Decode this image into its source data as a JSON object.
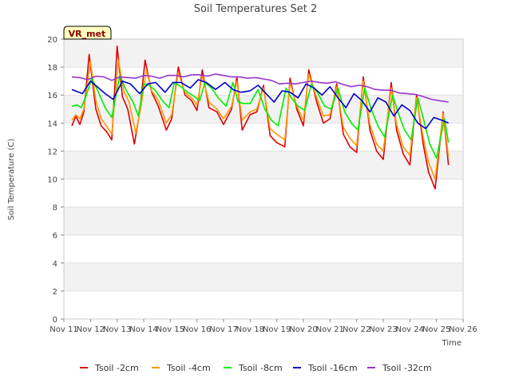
{
  "chart_data": {
    "type": "line",
    "title": "Soil Temperatures Set 2",
    "xlabel": "Time",
    "ylabel": "Soil Temperature (C)",
    "badge": "VR_met",
    "xlim": [
      0,
      15
    ],
    "ylim": [
      0,
      20
    ],
    "x_ticks": [
      "Nov 11",
      "Nov 12",
      "Nov 13",
      "Nov 14",
      "Nov 15",
      "Nov 16",
      "Nov 17",
      "Nov 18",
      "Nov 19",
      "Nov 20",
      "Nov 21",
      "Nov 22",
      "Nov 23",
      "Nov 24",
      "Nov 25",
      "Nov 26"
    ],
    "y_ticks": [
      0,
      2,
      4,
      6,
      8,
      10,
      12,
      14,
      16,
      18,
      20
    ],
    "grid": true,
    "legend_position": "bottom",
    "x_units": "days since Nov 11",
    "series": [
      {
        "name": "Tsoil -2cm",
        "color": "#dd0000",
        "x": [
          0.3,
          0.45,
          0.6,
          0.75,
          0.95,
          1.2,
          1.4,
          1.6,
          1.8,
          2.0,
          2.2,
          2.4,
          2.65,
          2.85,
          3.05,
          3.3,
          3.55,
          3.85,
          4.05,
          4.3,
          4.55,
          4.8,
          5.0,
          5.2,
          5.45,
          5.75,
          6.0,
          6.3,
          6.5,
          6.7,
          7.0,
          7.25,
          7.5,
          7.75,
          8.0,
          8.3,
          8.5,
          8.75,
          9.0,
          9.2,
          9.5,
          9.75,
          10.0,
          10.25,
          10.5,
          10.75,
          11.0,
          11.25,
          11.5,
          11.75,
          12.0,
          12.3,
          12.5,
          12.75,
          13.0,
          13.25,
          13.5,
          13.7,
          13.95,
          14.25,
          14.45
        ],
        "y": [
          13.8,
          14.5,
          13.9,
          14.8,
          18.9,
          15.0,
          13.8,
          13.4,
          12.8,
          19.5,
          15.9,
          15.0,
          12.5,
          14.8,
          18.5,
          16.2,
          15.2,
          13.5,
          14.3,
          18.0,
          16.0,
          15.6,
          14.9,
          17.8,
          15.1,
          14.8,
          13.9,
          15.0,
          17.3,
          13.5,
          14.6,
          14.8,
          16.7,
          13.1,
          12.6,
          12.3,
          17.2,
          15.0,
          13.8,
          17.8,
          15.5,
          14.0,
          14.3,
          16.8,
          13.2,
          12.3,
          11.9,
          17.3,
          13.5,
          12.0,
          11.4,
          16.9,
          13.5,
          11.8,
          11.0,
          16.0,
          12.5,
          10.5,
          9.3,
          14.8,
          11.0
        ]
      },
      {
        "name": "Tsoil -4cm",
        "color": "#ff9900",
        "x": [
          0.3,
          0.45,
          0.6,
          0.75,
          1.0,
          1.2,
          1.4,
          1.6,
          1.8,
          2.05,
          2.25,
          2.45,
          2.7,
          2.9,
          3.1,
          3.3,
          3.55,
          3.85,
          4.05,
          4.3,
          4.55,
          4.8,
          5.0,
          5.2,
          5.45,
          5.75,
          6.0,
          6.3,
          6.5,
          6.7,
          7.0,
          7.25,
          7.5,
          7.75,
          8.0,
          8.3,
          8.5,
          8.75,
          9.0,
          9.2,
          9.5,
          9.75,
          10.0,
          10.25,
          10.5,
          10.75,
          11.0,
          11.25,
          11.5,
          11.75,
          12.0,
          12.3,
          12.5,
          12.75,
          13.0,
          13.25,
          13.5,
          13.7,
          13.95,
          14.25,
          14.45
        ],
        "y": [
          14.2,
          14.6,
          14.3,
          15.0,
          18.4,
          15.6,
          14.3,
          13.8,
          13.2,
          18.5,
          16.3,
          15.5,
          13.3,
          15.2,
          17.8,
          16.3,
          15.6,
          14.0,
          14.6,
          17.6,
          16.2,
          15.8,
          15.3,
          17.4,
          15.5,
          15.0,
          14.3,
          15.2,
          17.0,
          14.2,
          14.8,
          15.0,
          16.5,
          13.6,
          13.2,
          12.8,
          16.9,
          15.2,
          14.2,
          17.5,
          15.8,
          14.5,
          14.6,
          16.6,
          13.7,
          12.9,
          12.4,
          17.0,
          13.9,
          12.5,
          12.0,
          16.5,
          13.9,
          12.3,
          11.7,
          15.8,
          13.0,
          11.2,
          10.0,
          14.7,
          11.6
        ]
      },
      {
        "name": "Tsoil -8cm",
        "color": "#00ee00",
        "x": [
          0.3,
          0.5,
          0.65,
          0.85,
          1.05,
          1.3,
          1.55,
          1.8,
          2.1,
          2.35,
          2.6,
          2.8,
          3.0,
          3.2,
          3.45,
          3.7,
          3.95,
          4.15,
          4.4,
          4.65,
          4.9,
          5.1,
          5.3,
          5.55,
          5.8,
          6.1,
          6.35,
          6.55,
          6.75,
          7.0,
          7.3,
          7.55,
          7.8,
          8.05,
          8.35,
          8.55,
          8.8,
          9.05,
          9.3,
          9.55,
          9.8,
          10.05,
          10.3,
          10.55,
          10.8,
          11.05,
          11.3,
          11.55,
          11.8,
          12.05,
          12.35,
          12.55,
          12.8,
          13.05,
          13.3,
          13.55,
          13.75,
          14.0,
          14.3,
          14.45
        ],
        "y": [
          15.2,
          15.3,
          15.1,
          16.0,
          17.2,
          16.2,
          15.1,
          14.4,
          17.4,
          16.3,
          15.5,
          14.5,
          16.8,
          16.7,
          16.3,
          15.6,
          15.1,
          16.9,
          16.6,
          16.2,
          15.9,
          15.6,
          16.9,
          16.5,
          15.8,
          15.2,
          16.9,
          15.5,
          15.4,
          15.4,
          16.4,
          15.0,
          14.2,
          13.8,
          16.5,
          15.8,
          15.2,
          14.9,
          16.8,
          16.1,
          15.2,
          15.0,
          16.5,
          14.8,
          14.0,
          13.5,
          16.5,
          15.0,
          13.8,
          13.0,
          16.0,
          14.8,
          13.5,
          12.8,
          15.8,
          14.0,
          12.5,
          11.5,
          14.3,
          12.6
        ]
      },
      {
        "name": "Tsoil -16cm",
        "color": "#0000cc",
        "x": [
          0.3,
          0.7,
          1.0,
          1.25,
          1.55,
          1.85,
          2.2,
          2.5,
          2.85,
          3.15,
          3.45,
          3.8,
          4.1,
          4.4,
          4.75,
          5.05,
          5.35,
          5.7,
          6.05,
          6.35,
          6.65,
          7.0,
          7.3,
          7.6,
          7.9,
          8.2,
          8.5,
          8.8,
          9.1,
          9.4,
          9.7,
          10.0,
          10.3,
          10.6,
          10.9,
          11.2,
          11.5,
          11.8,
          12.1,
          12.4,
          12.7,
          13.0,
          13.3,
          13.6,
          13.9,
          14.2,
          14.45
        ],
        "y": [
          16.4,
          16.1,
          17.0,
          16.6,
          16.1,
          15.7,
          17.0,
          16.8,
          16.1,
          16.8,
          16.9,
          16.2,
          16.9,
          16.9,
          16.5,
          17.1,
          16.9,
          16.4,
          16.9,
          16.4,
          16.2,
          16.3,
          16.7,
          16.1,
          15.5,
          16.3,
          16.2,
          15.8,
          16.8,
          16.5,
          16.0,
          16.6,
          15.8,
          15.1,
          16.1,
          15.6,
          14.8,
          15.8,
          15.5,
          14.5,
          15.3,
          14.9,
          14.0,
          13.6,
          14.4,
          14.2,
          14.0
        ]
      },
      {
        "name": "Tsoil -32cm",
        "color": "#9933cc",
        "x": [
          0.3,
          0.6,
          0.9,
          1.2,
          1.5,
          1.8,
          2.1,
          2.4,
          2.7,
          3.0,
          3.3,
          3.6,
          3.9,
          4.2,
          4.5,
          4.8,
          5.1,
          5.4,
          5.7,
          6.0,
          6.3,
          6.6,
          6.9,
          7.2,
          7.5,
          7.8,
          8.1,
          8.4,
          8.7,
          9.0,
          9.3,
          9.6,
          9.9,
          10.2,
          10.5,
          10.8,
          11.1,
          11.4,
          11.7,
          12.0,
          12.3,
          12.6,
          12.9,
          13.2,
          13.5,
          13.8,
          14.1,
          14.45
        ],
        "y": [
          17.3,
          17.25,
          17.1,
          17.35,
          17.3,
          17.05,
          17.3,
          17.25,
          17.2,
          17.4,
          17.35,
          17.2,
          17.4,
          17.4,
          17.3,
          17.45,
          17.45,
          17.35,
          17.5,
          17.4,
          17.3,
          17.3,
          17.2,
          17.25,
          17.15,
          17.05,
          16.8,
          16.85,
          16.8,
          16.9,
          17.0,
          16.9,
          16.85,
          16.95,
          16.75,
          16.6,
          16.7,
          16.6,
          16.4,
          16.35,
          16.35,
          16.15,
          16.1,
          16.05,
          15.9,
          15.7,
          15.6,
          15.5
        ]
      }
    ]
  }
}
